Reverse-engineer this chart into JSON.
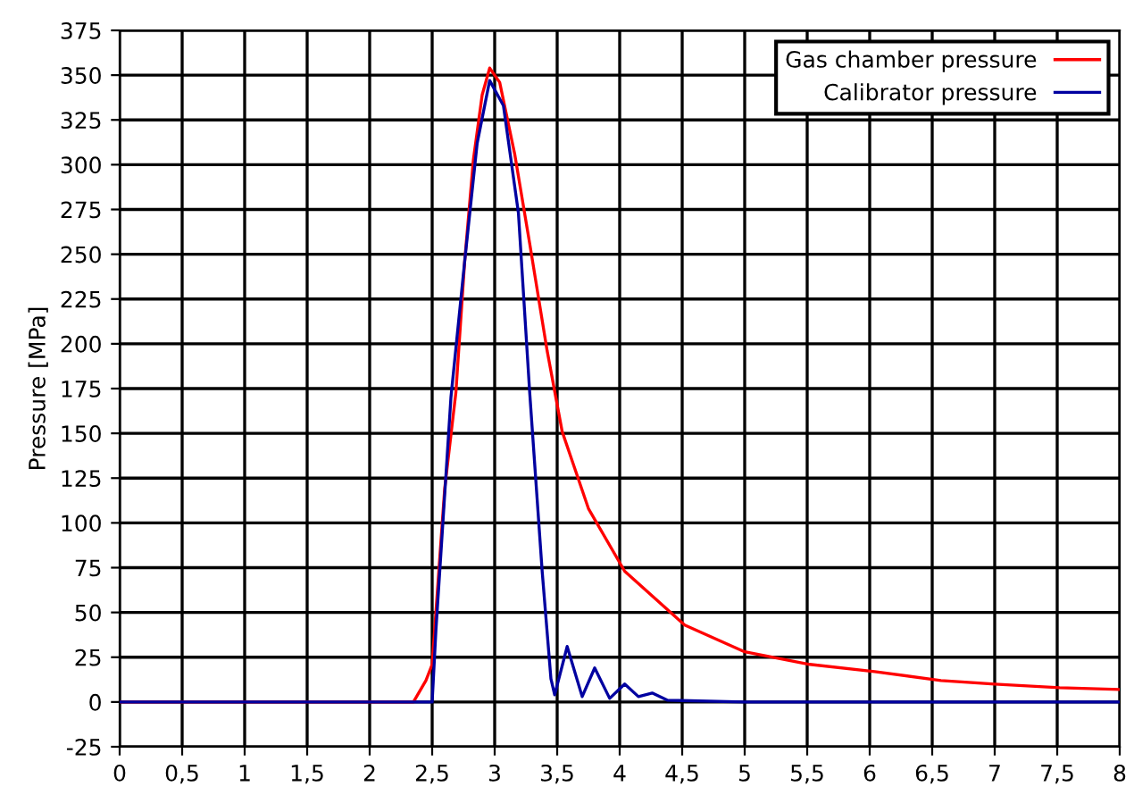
{
  "chart_data": {
    "type": "line",
    "ylabel": "Pressure [MPa]",
    "xlim": [
      0,
      8
    ],
    "ylim": [
      -25,
      375
    ],
    "xticks": [
      0,
      {
        "value": 0.5,
        "label": "0,5"
      },
      1,
      {
        "value": 1.5,
        "label": "1,5"
      },
      2,
      {
        "value": 2.5,
        "label": "2,5"
      },
      3,
      {
        "value": 3.5,
        "label": "3,5"
      },
      4,
      {
        "value": 4.5,
        "label": "4,5"
      },
      5,
      {
        "value": 5.5,
        "label": "5,5"
      },
      6,
      {
        "value": 6.5,
        "label": "6,5"
      },
      7,
      {
        "value": 7.5,
        "label": "7,5"
      },
      8
    ],
    "yticks": [
      -25,
      0,
      25,
      50,
      75,
      100,
      125,
      150,
      175,
      200,
      225,
      250,
      275,
      300,
      325,
      350,
      375
    ],
    "grid": true,
    "legend": "top right",
    "series": [
      {
        "name": "Gas chamber pressure",
        "color": "#ff0000",
        "x": [
          0,
          2.35,
          2.45,
          2.5,
          2.6,
          2.69,
          2.76,
          2.83,
          2.9,
          2.96,
          3.04,
          3.16,
          3.28,
          3.42,
          3.54,
          3.75,
          4.04,
          4.52,
          5.0,
          5.52,
          6.04,
          6.57,
          7.0,
          7.52,
          8.0
        ],
        "values": [
          0,
          0,
          12,
          21,
          119,
          173,
          246,
          303,
          339,
          354,
          346,
          306,
          256,
          196,
          151,
          108,
          73,
          43,
          28,
          21,
          17,
          12,
          10,
          8,
          7
        ]
      },
      {
        "name": "Calibrator pressure",
        "color": "#0000a0",
        "x": [
          0,
          2.5,
          2.53,
          2.57,
          2.65,
          2.76,
          2.86,
          2.96,
          3.07,
          3.19,
          3.28,
          3.38,
          3.45,
          3.48,
          3.58,
          3.7,
          3.8,
          3.92,
          4.04,
          4.15,
          4.26,
          4.38,
          5.0,
          6.0,
          7.0,
          8.0
        ],
        "values": [
          0,
          0,
          40,
          83,
          170,
          246,
          312,
          347,
          333,
          273,
          173,
          73,
          13,
          4,
          31,
          3,
          19,
          2,
          10,
          3,
          5,
          1,
          0,
          0,
          0,
          0
        ]
      }
    ]
  }
}
